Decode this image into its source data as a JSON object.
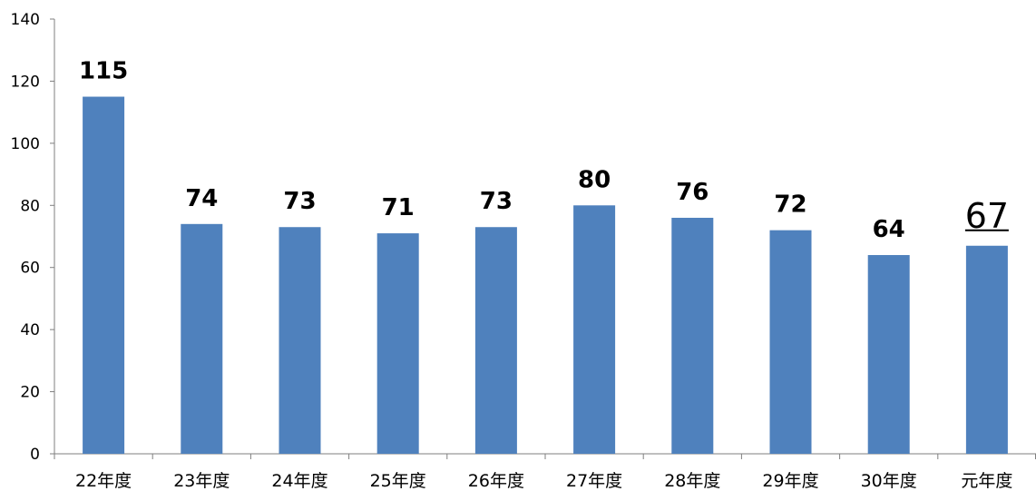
{
  "chart_data": {
    "type": "bar",
    "categories": [
      "22年度",
      "23年度",
      "24年度",
      "25年度",
      "26年度",
      "27年度",
      "28年度",
      "29年度",
      "30年度",
      "元年度"
    ],
    "values": [
      115,
      74,
      73,
      71,
      73,
      80,
      76,
      72,
      64,
      67
    ],
    "data_labels": [
      "115",
      "74",
      "73",
      "71",
      "73",
      "80",
      "76",
      "72",
      "64",
      "67"
    ],
    "emphasized_index": 9,
    "ylim": [
      0,
      140
    ],
    "yticks": [
      0,
      20,
      40,
      60,
      80,
      100,
      120,
      140
    ],
    "ytick_labels": [
      "0",
      "20",
      "40",
      "60",
      "80",
      "100",
      "120",
      "140"
    ],
    "grid": false,
    "bar_color": "#4f81bd",
    "title": "",
    "xlabel": "",
    "ylabel": ""
  }
}
